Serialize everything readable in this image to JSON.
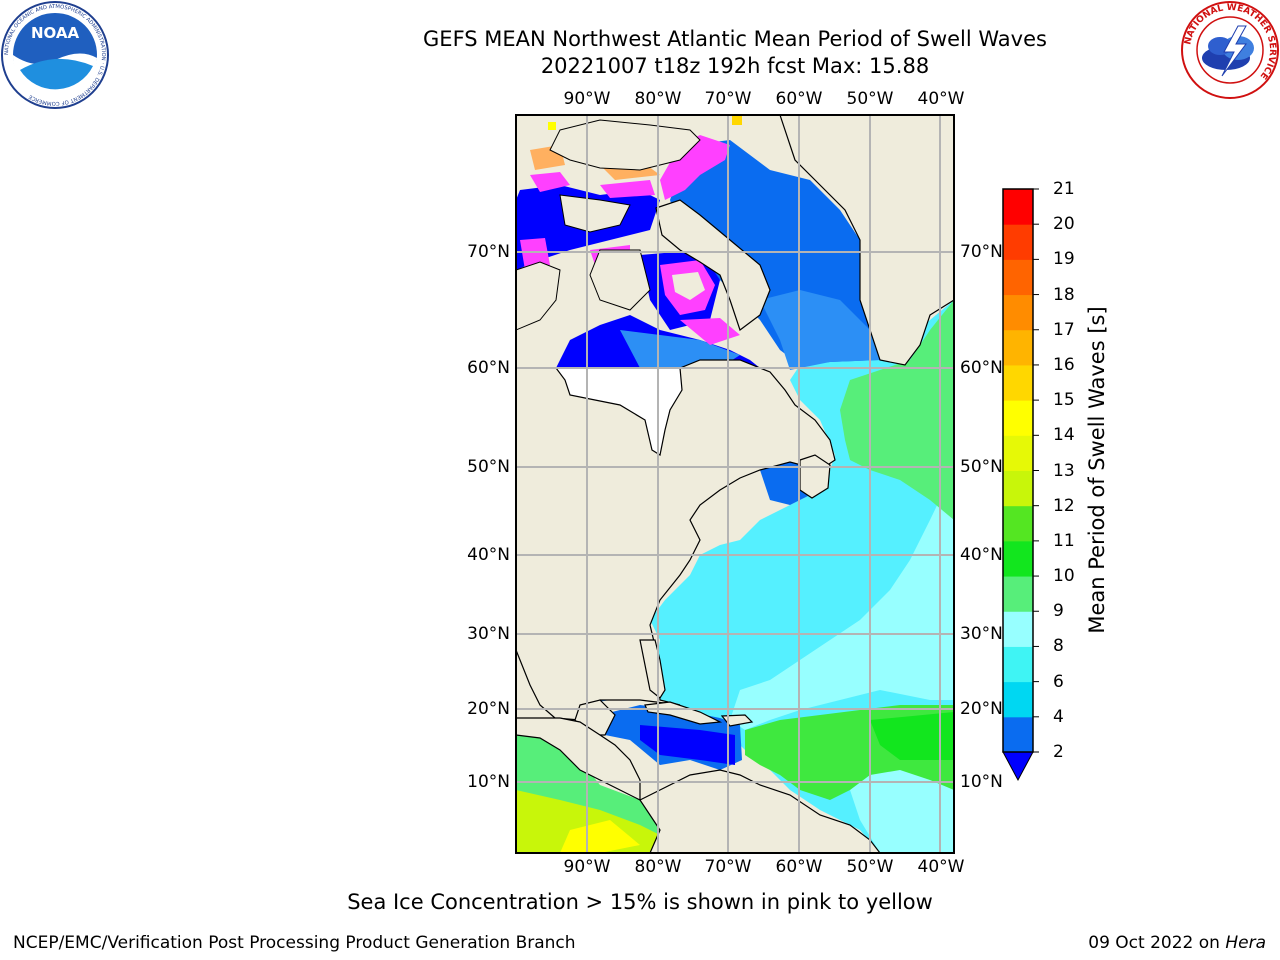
{
  "title_line1": "GEFS MEAN Northwest Atlantic Mean Period of Swell Waves",
  "title_line2": "20221007 t18z 192h fcst   Max: 15.88",
  "lon_labels": [
    "90°W",
    "80°W",
    "70°W",
    "60°W",
    "50°W",
    "40°W"
  ],
  "lat_labels": [
    "70°N",
    "60°N",
    "50°N",
    "40°N",
    "30°N",
    "20°N",
    "10°N"
  ],
  "colorbar": {
    "label": "Mean Period of Swell Waves [s]",
    "ticks": [
      "2",
      "4",
      "6",
      "8",
      "9",
      "10",
      "11",
      "12",
      "13",
      "14",
      "15",
      "16",
      "17",
      "18",
      "19",
      "20",
      "21"
    ],
    "colors": [
      "#0a6cf0",
      "#00d7f2",
      "#3ff4f4",
      "#97ffff",
      "#57ee7a",
      "#12e61e",
      "#54e622",
      "#c8f60a",
      "#e6f906",
      "#ffff00",
      "#ffd700",
      "#ffb400",
      "#ff8c00",
      "#ff6400",
      "#ff3c00",
      "#ff0000"
    ],
    "under_color": "#0000ff"
  },
  "subtitle": "Sea Ice Concentration > 15% is shown in pink to yellow",
  "footer_left": "NCEP/EMC/Verification Post Processing Product Generation Branch",
  "footer_right_date": "09 Oct 2022 on",
  "footer_right_host": "Hera",
  "logos": {
    "noaa_text": "NOAA",
    "noaa_ring": "NATIONAL OCEANIC AND ATMOSPHERIC ADMINISTRATION · U.S. DEPARTMENT OF COMMERCE",
    "nws_ring": "NATIONAL WEATHER SERVICE"
  },
  "colors": {
    "land": "#efecdc",
    "grid": "#b4b4b4",
    "ice_pink": "#ff40ff",
    "ice_orange": "#ffb060"
  }
}
